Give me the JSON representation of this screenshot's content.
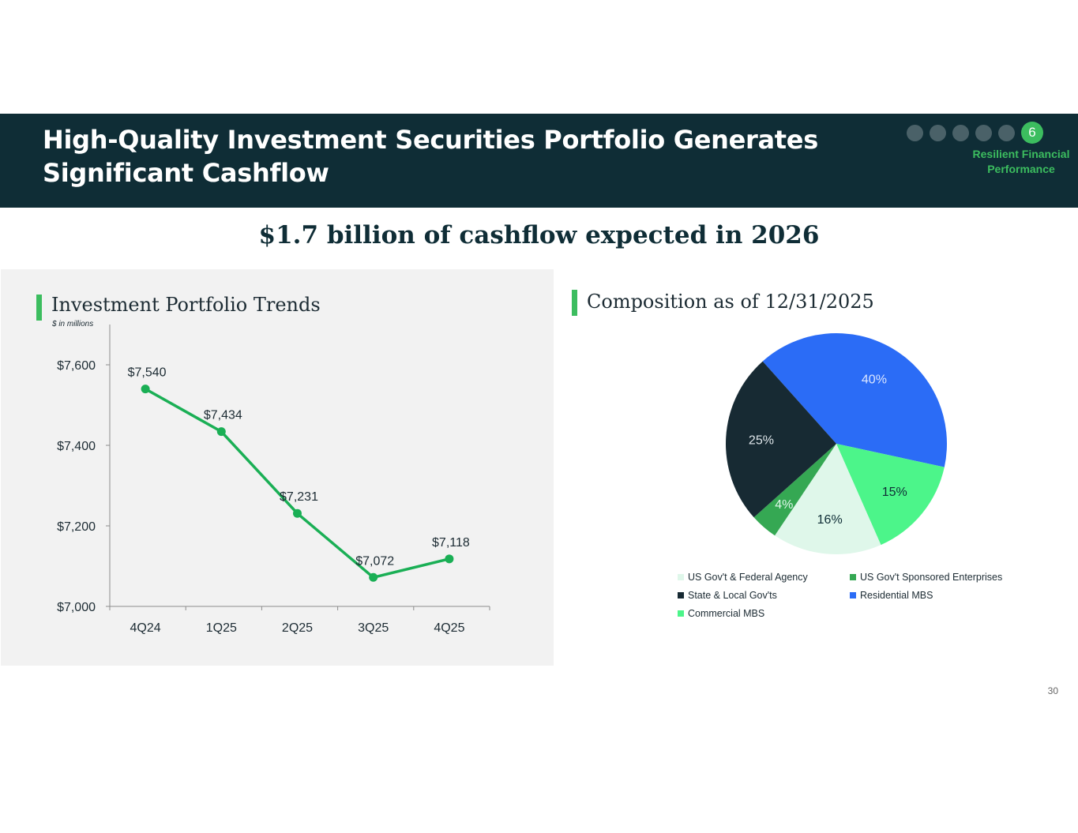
{
  "header": {
    "title_line1": "High-Quality Investment Securities Portfolio Generates",
    "title_line2": "Significant Cashflow",
    "section_number": "6",
    "section_label_line1": "Resilient Financial",
    "section_label_line2": "Performance"
  },
  "headline": "$1.7 billion of cashflow expected in 2026",
  "left_panel": {
    "title": "Investment Portfolio Trends",
    "units": "$ in millions"
  },
  "right_panel": {
    "title": "Composition as of 12/31/2025"
  },
  "colors": {
    "header_bg": "#0f2d36",
    "accent_green": "#3cbd5f",
    "line_green": "#1aaf55",
    "gov_agency": "#dff7ea",
    "gse": "#35a853",
    "state_local": "#172a33",
    "residential_mbs": "#2b6cf6",
    "commercial_mbs": "#4cf58a"
  },
  "chart_data": [
    {
      "type": "line",
      "title": "Investment Portfolio Trends",
      "ylabel": "$ in millions",
      "categories": [
        "4Q24",
        "1Q25",
        "2Q25",
        "3Q25",
        "4Q25"
      ],
      "values": [
        7540,
        7434,
        7231,
        7072,
        7118
      ],
      "data_labels": [
        "$7,540",
        "$7,434",
        "$7,231",
        "$7,072",
        "$7,118"
      ],
      "ylim": [
        7000,
        7700
      ],
      "yticks": [
        7000,
        7200,
        7400,
        7600
      ],
      "ytick_labels": [
        "$7,000",
        "$7,200",
        "$7,400",
        "$7,600"
      ]
    },
    {
      "type": "pie",
      "title": "Composition as of 12/31/2025",
      "slices": [
        {
          "name": "Residential MBS",
          "value": 40,
          "label": "40%",
          "color": "#2b6cf6",
          "label_color": "#dbe6ff"
        },
        {
          "name": "Commercial MBS",
          "value": 15,
          "label": "15%",
          "color": "#4cf58a",
          "label_color": "#0f2d36"
        },
        {
          "name": "US Gov't & Federal Agency",
          "value": 16,
          "label": "16%",
          "color": "#dff7ea",
          "label_color": "#0f2d36"
        },
        {
          "name": "US Gov't Sponsored Enterprises",
          "value": 4,
          "label": "4%",
          "color": "#35a853",
          "label_color": "#dff7ea"
        },
        {
          "name": "State & Local Gov'ts",
          "value": 25,
          "label": "25%",
          "color": "#172a33",
          "label_color": "#dfe6ea"
        }
      ],
      "legend": [
        {
          "label": "US Gov't & Federal Agency",
          "color": "#dff7ea"
        },
        {
          "label": "US Gov't Sponsored Enterprises",
          "color": "#35a853"
        },
        {
          "label": "State & Local Gov'ts",
          "color": "#172a33"
        },
        {
          "label": "Residential MBS",
          "color": "#2b6cf6"
        },
        {
          "label": "Commercial MBS",
          "color": "#4cf58a"
        }
      ]
    }
  ],
  "page_number": "30"
}
